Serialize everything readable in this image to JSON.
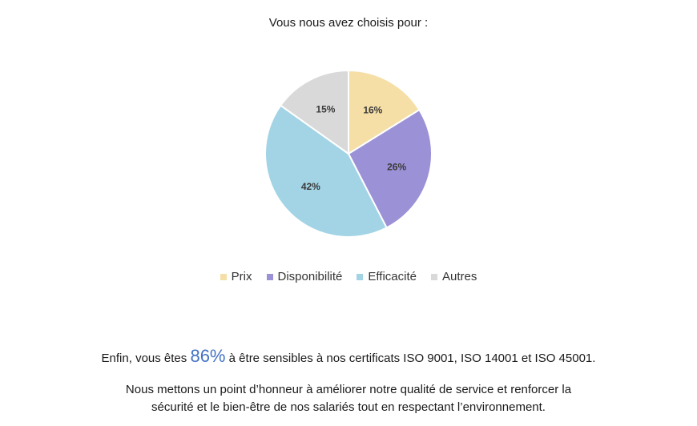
{
  "chart_data": {
    "type": "pie",
    "title": "Vous nous avez choisis pour :",
    "categories": [
      "Prix",
      "Disponibilité",
      "Efficacité",
      "Autres"
    ],
    "values": [
      16,
      26,
      42,
      15
    ],
    "labels": [
      "16%",
      "26%",
      "42%",
      "15%"
    ],
    "colors": [
      "#f5dfa6",
      "#9b91d6",
      "#a2d4e6",
      "#d9d9d9"
    ],
    "legend_position": "bottom"
  },
  "text": {
    "line1_before": "Enfin, vous êtes",
    "line1_highlight": "86%",
    "line1_after": "à être sensibles à nos certificats ISO 9001, ISO 14001 et ISO 45001.",
    "line2": "Nous mettons un point d’honneur à améliorer notre qualité de service et renforcer la",
    "line3": "sécurité et le bien-être de nos salariés tout en respectant l’environnement."
  }
}
